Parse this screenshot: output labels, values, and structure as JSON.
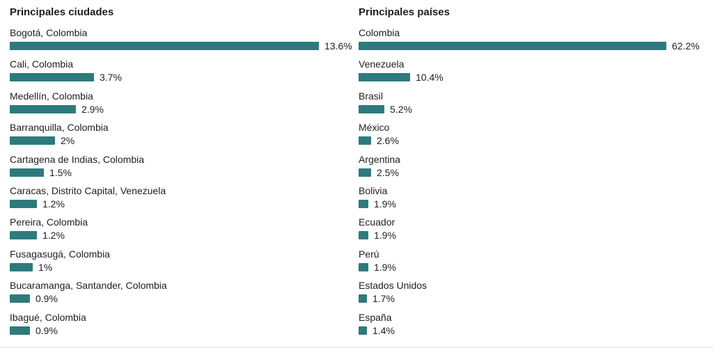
{
  "chart_data": [
    {
      "type": "bar",
      "title": "Principales ciudades",
      "categories": [
        "Bogotá, Colombia",
        "Cali, Colombia",
        "Medellín, Colombia",
        "Barranquilla, Colombia",
        "Cartagena de Indias, Colombia",
        "Caracas, Distrito Capital, Venezuela",
        "Pereira, Colombia",
        "Fusagasugá, Colombia",
        "Bucaramanga, Santander, Colombia",
        "Ibagué, Colombia"
      ],
      "values": [
        13.6,
        3.7,
        2.9,
        2,
        1.5,
        1.2,
        1.2,
        1,
        0.9,
        0.9
      ],
      "value_labels": [
        "13.6%",
        "3.7%",
        "2.9%",
        "2%",
        "1.5%",
        "1.2%",
        "1.2%",
        "1%",
        "0.9%",
        "0.9%"
      ],
      "bar_color": "#2d7a7d"
    },
    {
      "type": "bar",
      "title": "Principales países",
      "categories": [
        "Colombia",
        "Venezuela",
        "Brasil",
        "México",
        "Argentina",
        "Bolivia",
        "Ecuador",
        "Perú",
        "Estados Unidos",
        "España"
      ],
      "values": [
        62.2,
        10.4,
        5.2,
        2.6,
        2.5,
        1.9,
        1.9,
        1.9,
        1.7,
        1.4
      ],
      "value_labels": [
        "62.2%",
        "10.4%",
        "5.2%",
        "2.6%",
        "2.5%",
        "1.9%",
        "1.9%",
        "1.9%",
        "1.7%",
        "1.4%"
      ],
      "bar_color": "#2d7a7d"
    }
  ]
}
